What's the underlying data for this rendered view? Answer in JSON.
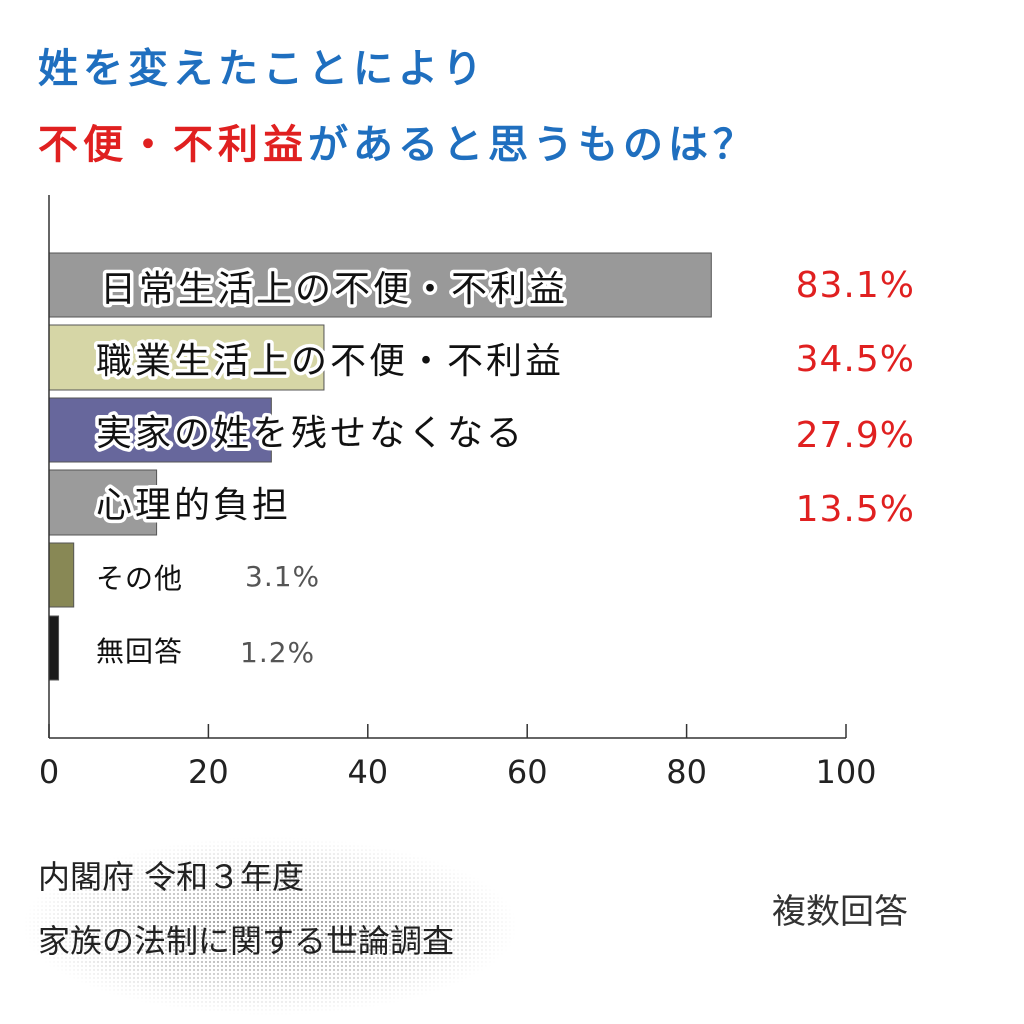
{
  "title": {
    "line1": "姓を変えたことにより",
    "line2_red": "不便・不利益",
    "line2_blue": "があると思うものは？"
  },
  "chart_data": {
    "type": "bar",
    "orientation": "horizontal",
    "categories": [
      "日常生活上の不便・不利益",
      "職業生活上の不便・不利益",
      "実家の姓を残せなくなる",
      "心理的負担",
      "その他",
      "無回答"
    ],
    "values": [
      83.1,
      34.5,
      27.9,
      13.5,
      3.1,
      1.2
    ],
    "value_labels": [
      "83.1%",
      "34.5%",
      "27.9%",
      "13.5%",
      "3.1%",
      "1.2%"
    ],
    "bar_colors": [
      "#999999",
      "#d6d6a6",
      "#67679c",
      "#9b9b9b",
      "#888855",
      "#1a1a1a"
    ],
    "xlim": [
      0,
      100
    ],
    "xticks": [
      0,
      20,
      40,
      60,
      80,
      100
    ],
    "value_label_colors": [
      "#e02020",
      "#e02020",
      "#e02020",
      "#e02020",
      "#555555",
      "#555555"
    ]
  },
  "source": {
    "line1": "内閣府 令和３年度",
    "line2": "家族の法制に関する世論調査"
  },
  "note": "複数回答"
}
